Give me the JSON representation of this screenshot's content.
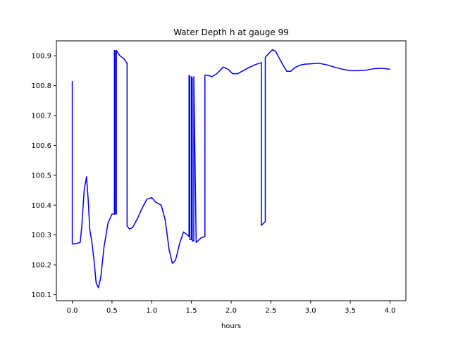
{
  "chart_data": {
    "type": "line",
    "title": "Water Depth h at gauge 99",
    "xlabel": "hours",
    "ylabel": "",
    "xlim": [
      -0.2,
      4.2
    ],
    "ylim": [
      100.08,
      100.95
    ],
    "xticks": [
      0.0,
      0.5,
      1.0,
      1.5,
      2.0,
      2.5,
      3.0,
      3.5,
      4.0
    ],
    "xtick_labels": [
      "0.0",
      "0.5",
      "1.0",
      "1.5",
      "2.0",
      "2.5",
      "3.0",
      "3.5",
      "4.0"
    ],
    "yticks": [
      100.1,
      100.2,
      100.3,
      100.4,
      100.5,
      100.6,
      100.7,
      100.8,
      100.9
    ],
    "ytick_labels": [
      "100.1",
      "100.2",
      "100.3",
      "100.4",
      "100.5",
      "100.6",
      "100.7",
      "100.8",
      "100.9"
    ],
    "grid": false,
    "line_color": "#0000ff",
    "series": [
      {
        "x": [
          0.0,
          0.0,
          0.02,
          0.06,
          0.1,
          0.12,
          0.15,
          0.18,
          0.2,
          0.22,
          0.25,
          0.28,
          0.3,
          0.33,
          0.36,
          0.4,
          0.45,
          0.5,
          0.53,
          0.53,
          0.545,
          0.545,
          0.555,
          0.555,
          0.57,
          0.6,
          0.65,
          0.69,
          0.69,
          0.72,
          0.76,
          0.82,
          0.88,
          0.94,
          1.0,
          1.05,
          1.12,
          1.17,
          1.22,
          1.26,
          1.3,
          1.35,
          1.4,
          1.45,
          1.47,
          1.47,
          1.48,
          1.48,
          1.5,
          1.5,
          1.51,
          1.51,
          1.53,
          1.53,
          1.56,
          1.62,
          1.67,
          1.67,
          1.7,
          1.76,
          1.82,
          1.9,
          1.96,
          2.02,
          2.08,
          2.15,
          2.22,
          2.3,
          2.38,
          2.38,
          2.43,
          2.43,
          2.48,
          2.52,
          2.56,
          2.6,
          2.65,
          2.7,
          2.75,
          2.8,
          2.86,
          2.93,
          3.0,
          3.1,
          3.2,
          3.3,
          3.4,
          3.5,
          3.6,
          3.7,
          3.8,
          3.9,
          4.0
        ],
        "y": [
          100.815,
          100.27,
          100.27,
          100.272,
          100.275,
          100.33,
          100.45,
          100.495,
          100.42,
          100.32,
          100.27,
          100.2,
          100.14,
          100.123,
          100.16,
          100.26,
          100.34,
          100.37,
          100.37,
          100.918,
          100.915,
          100.37,
          100.37,
          100.918,
          100.912,
          100.9,
          100.89,
          100.875,
          100.33,
          100.32,
          100.325,
          100.355,
          100.39,
          100.42,
          100.425,
          100.41,
          100.4,
          100.35,
          100.25,
          100.205,
          100.215,
          100.27,
          100.31,
          100.3,
          100.295,
          100.835,
          100.83,
          100.285,
          100.285,
          100.83,
          100.825,
          100.28,
          100.28,
          100.83,
          100.275,
          100.29,
          100.295,
          100.835,
          100.835,
          100.83,
          100.84,
          100.862,
          100.855,
          100.84,
          100.84,
          100.85,
          100.86,
          100.87,
          100.877,
          100.332,
          100.345,
          100.895,
          100.91,
          100.92,
          100.915,
          100.895,
          100.87,
          100.848,
          100.848,
          100.86,
          100.868,
          100.872,
          100.873,
          100.875,
          100.87,
          100.862,
          100.855,
          100.85,
          100.85,
          100.852,
          100.857,
          100.858,
          100.855
        ]
      }
    ]
  }
}
